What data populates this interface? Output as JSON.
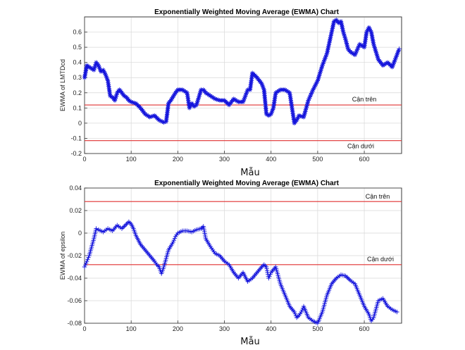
{
  "colors": {
    "series": "#1414dc",
    "limit": "#e03030",
    "grid": "#d8d8d8",
    "axis": "#333333"
  },
  "chart_data": [
    {
      "type": "line",
      "title": "Exponentially Weighted Moving Average (EWMA) Chart",
      "xlabel": "Mẫu",
      "ylabel": "EWMA of LMTDcd",
      "xlim": [
        0,
        680
      ],
      "ylim": [
        -0.2,
        0.7
      ],
      "xticks": [
        0,
        100,
        200,
        300,
        400,
        500,
        600
      ],
      "yticks": [
        -0.2,
        -0.1,
        0,
        0.1,
        0.2,
        0.3,
        0.4,
        0.5,
        0.6
      ],
      "ytick_labels": [
        "-0.2",
        "-0.1",
        "0",
        "0.1",
        "0.2",
        "0.3",
        "0.4",
        "0.5",
        "0.6"
      ],
      "grid": true,
      "marker": "asterisk",
      "limits": [
        {
          "label": "Cận trên",
          "value": 0.12
        },
        {
          "label": "Cận dưới",
          "value": -0.115
        }
      ],
      "series": [
        {
          "x": [
            0,
            5,
            10,
            20,
            25,
            30,
            35,
            40,
            45,
            50,
            55,
            60,
            65,
            70,
            75,
            80,
            85,
            90,
            95,
            100,
            110,
            120,
            130,
            140,
            150,
            160,
            170,
            175,
            180,
            185,
            195,
            200,
            210,
            220,
            225,
            230,
            235,
            240,
            250,
            255,
            260,
            270,
            280,
            290,
            300,
            310,
            320,
            330,
            340,
            350,
            355,
            360,
            370,
            380,
            385,
            390,
            395,
            400,
            405,
            410,
            420,
            430,
            440,
            445,
            450,
            455,
            460,
            470,
            480,
            490,
            500,
            510,
            520,
            530,
            535,
            540,
            545,
            550,
            555,
            560,
            565,
            570,
            580,
            590,
            600,
            605,
            610,
            615,
            620,
            630,
            640,
            650,
            660,
            670,
            675
          ],
          "y": [
            0.3,
            0.38,
            0.37,
            0.35,
            0.4,
            0.38,
            0.34,
            0.35,
            0.32,
            0.28,
            0.18,
            0.17,
            0.15,
            0.2,
            0.22,
            0.2,
            0.18,
            0.17,
            0.15,
            0.14,
            0.13,
            0.1,
            0.06,
            0.04,
            0.05,
            0.02,
            0.005,
            0.01,
            0.13,
            0.15,
            0.2,
            0.22,
            0.22,
            0.2,
            0.1,
            0.13,
            0.11,
            0.12,
            0.22,
            0.22,
            0.2,
            0.18,
            0.16,
            0.15,
            0.15,
            0.12,
            0.16,
            0.14,
            0.14,
            0.22,
            0.22,
            0.33,
            0.3,
            0.26,
            0.22,
            0.06,
            0.05,
            0.06,
            0.1,
            0.2,
            0.22,
            0.22,
            0.2,
            0.1,
            0.0,
            0.02,
            0.05,
            0.04,
            0.15,
            0.22,
            0.28,
            0.38,
            0.46,
            0.6,
            0.67,
            0.68,
            0.66,
            0.67,
            0.6,
            0.55,
            0.49,
            0.47,
            0.45,
            0.52,
            0.5,
            0.6,
            0.63,
            0.6,
            0.52,
            0.42,
            0.38,
            0.4,
            0.37,
            0.45,
            0.49
          ]
        }
      ]
    },
    {
      "type": "line",
      "title": "Exponentially Weighted Moving Average (EWMA) Chart",
      "xlabel": "Mẫu",
      "ylabel": "EWMA of epsilon",
      "xlim": [
        0,
        680
      ],
      "ylim": [
        -0.08,
        0.04
      ],
      "xticks": [
        0,
        100,
        200,
        300,
        400,
        500,
        600
      ],
      "yticks": [
        -0.08,
        -0.06,
        -0.04,
        -0.02,
        0,
        0.02,
        0.04
      ],
      "ytick_labels": [
        "-0.08",
        "-0.06",
        "-0.04",
        "-0.02",
        "0",
        "0.02",
        "0.04"
      ],
      "grid": true,
      "marker": "plus",
      "limits": [
        {
          "label": "Cận trên",
          "value": 0.028
        },
        {
          "label": "Cận dưới",
          "value": -0.028
        }
      ],
      "series": [
        {
          "x": [
            0,
            5,
            10,
            20,
            25,
            30,
            40,
            50,
            60,
            70,
            80,
            90,
            95,
            100,
            105,
            110,
            120,
            130,
            140,
            150,
            155,
            160,
            165,
            170,
            180,
            190,
            195,
            200,
            210,
            220,
            230,
            240,
            250,
            255,
            260,
            270,
            280,
            290,
            300,
            310,
            320,
            330,
            340,
            350,
            360,
            370,
            380,
            385,
            390,
            395,
            400,
            410,
            420,
            430,
            440,
            450,
            455,
            460,
            465,
            470,
            480,
            490,
            500,
            510,
            520,
            530,
            540,
            550,
            560,
            570,
            580,
            590,
            600,
            610,
            615,
            620,
            630,
            640,
            650,
            660,
            670
          ],
          "y": [
            -0.03,
            -0.025,
            -0.02,
            -0.005,
            0.004,
            0.003,
            0.001,
            0.004,
            0.002,
            0.007,
            0.004,
            0.008,
            0.01,
            0.008,
            0.004,
            -0.002,
            -0.01,
            -0.015,
            -0.02,
            -0.025,
            -0.028,
            -0.03,
            -0.036,
            -0.03,
            -0.015,
            -0.008,
            -0.003,
            0.0,
            0.002,
            0.002,
            0.001,
            0.003,
            0.004,
            0.006,
            -0.005,
            -0.012,
            -0.018,
            -0.02,
            -0.025,
            -0.028,
            -0.035,
            -0.04,
            -0.035,
            -0.043,
            -0.04,
            -0.035,
            -0.03,
            -0.028,
            -0.03,
            -0.04,
            -0.035,
            -0.03,
            -0.045,
            -0.055,
            -0.065,
            -0.07,
            -0.075,
            -0.073,
            -0.07,
            -0.065,
            -0.075,
            -0.078,
            -0.08,
            -0.07,
            -0.055,
            -0.045,
            -0.04,
            -0.037,
            -0.038,
            -0.042,
            -0.045,
            -0.055,
            -0.065,
            -0.072,
            -0.078,
            -0.075,
            -0.06,
            -0.058,
            -0.065,
            -0.068,
            -0.07
          ]
        }
      ]
    }
  ]
}
